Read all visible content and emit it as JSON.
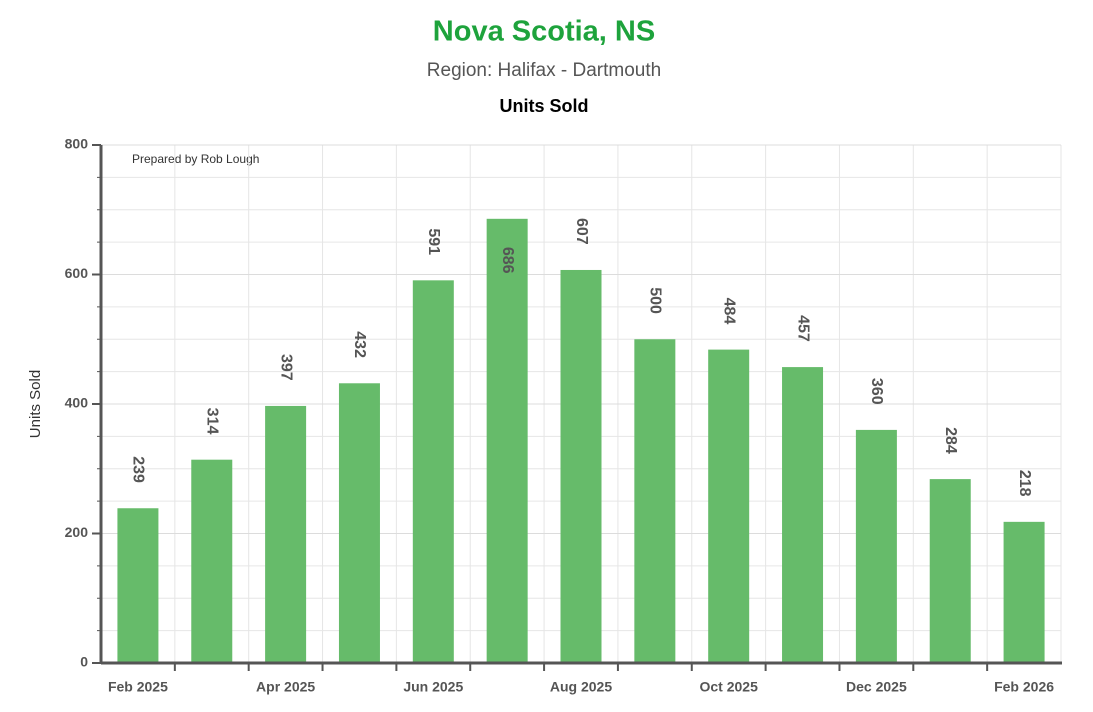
{
  "chart_data": {
    "type": "bar",
    "title": "Nova Scotia, NS",
    "subtitle": "Region: Halifax - Dartmouth",
    "chart_label": "Units Sold",
    "annotation": "Prepared by Rob Lough",
    "y_axis_label": "Units Sold",
    "categories": [
      "Feb 2025",
      null,
      "Apr 2025",
      null,
      "Jun 2025",
      null,
      "Aug 2025",
      null,
      "Oct 2025",
      null,
      "Dec 2025",
      null,
      "Feb 2026"
    ],
    "values": [
      239,
      314,
      397,
      432,
      591,
      686,
      607,
      500,
      484,
      457,
      360,
      284,
      218
    ],
    "color": "#66bb6a",
    "ylim": [
      0,
      800
    ],
    "yticks": [
      0,
      200,
      400,
      600,
      800
    ],
    "grid": true
  }
}
